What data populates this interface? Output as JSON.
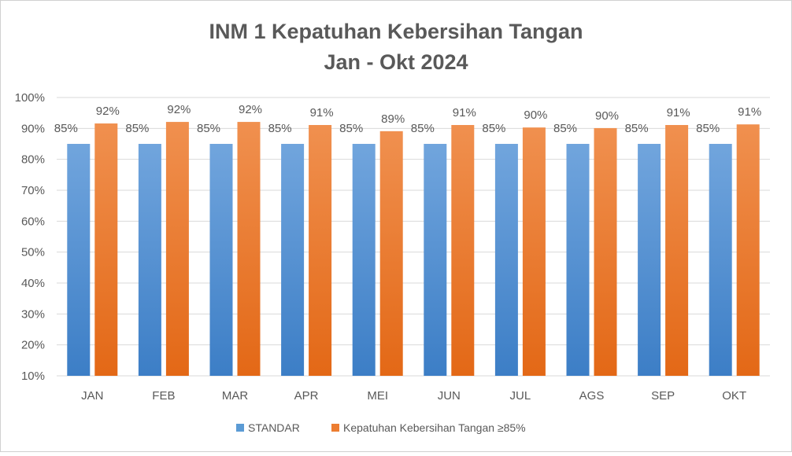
{
  "chart_data": {
    "type": "bar",
    "title": "INM 1 Kepatuhan Kebersihan Tangan",
    "subtitle": "Jan - Okt 2024",
    "xlabel": "",
    "ylabel": "",
    "ylim": [
      10,
      100
    ],
    "yticks": [
      "10%",
      "20%",
      "30%",
      "40%",
      "50%",
      "60%",
      "70%",
      "80%",
      "90%",
      "100%"
    ],
    "grid": true,
    "legend_position": "bottom",
    "categories": [
      "JAN",
      "FEB",
      "MAR",
      "APR",
      "MEI",
      "JUN",
      "JUL",
      "AGS",
      "SEP",
      "OKT"
    ],
    "series": [
      {
        "name": "STANDAR",
        "color": "#5b9bd5",
        "values": [
          85,
          85,
          85,
          85,
          85,
          85,
          85,
          85,
          85,
          85
        ],
        "labels": [
          "85%",
          "85%",
          "85%",
          "85%",
          "85%",
          "85%",
          "85%",
          "85%",
          "85%",
          "85%"
        ]
      },
      {
        "name": "Kepatuhan Kebersihan Tangan ≥85%",
        "color": "#ed7d31",
        "values": [
          91.6,
          92.1,
          92.1,
          91.1,
          89.1,
          91.1,
          90.3,
          90.1,
          91.1,
          91.3
        ],
        "labels": [
          "92%",
          "92%",
          "92%",
          "91%",
          "89%",
          "91%",
          "90%",
          "90%",
          "91%",
          "91%"
        ]
      }
    ]
  }
}
